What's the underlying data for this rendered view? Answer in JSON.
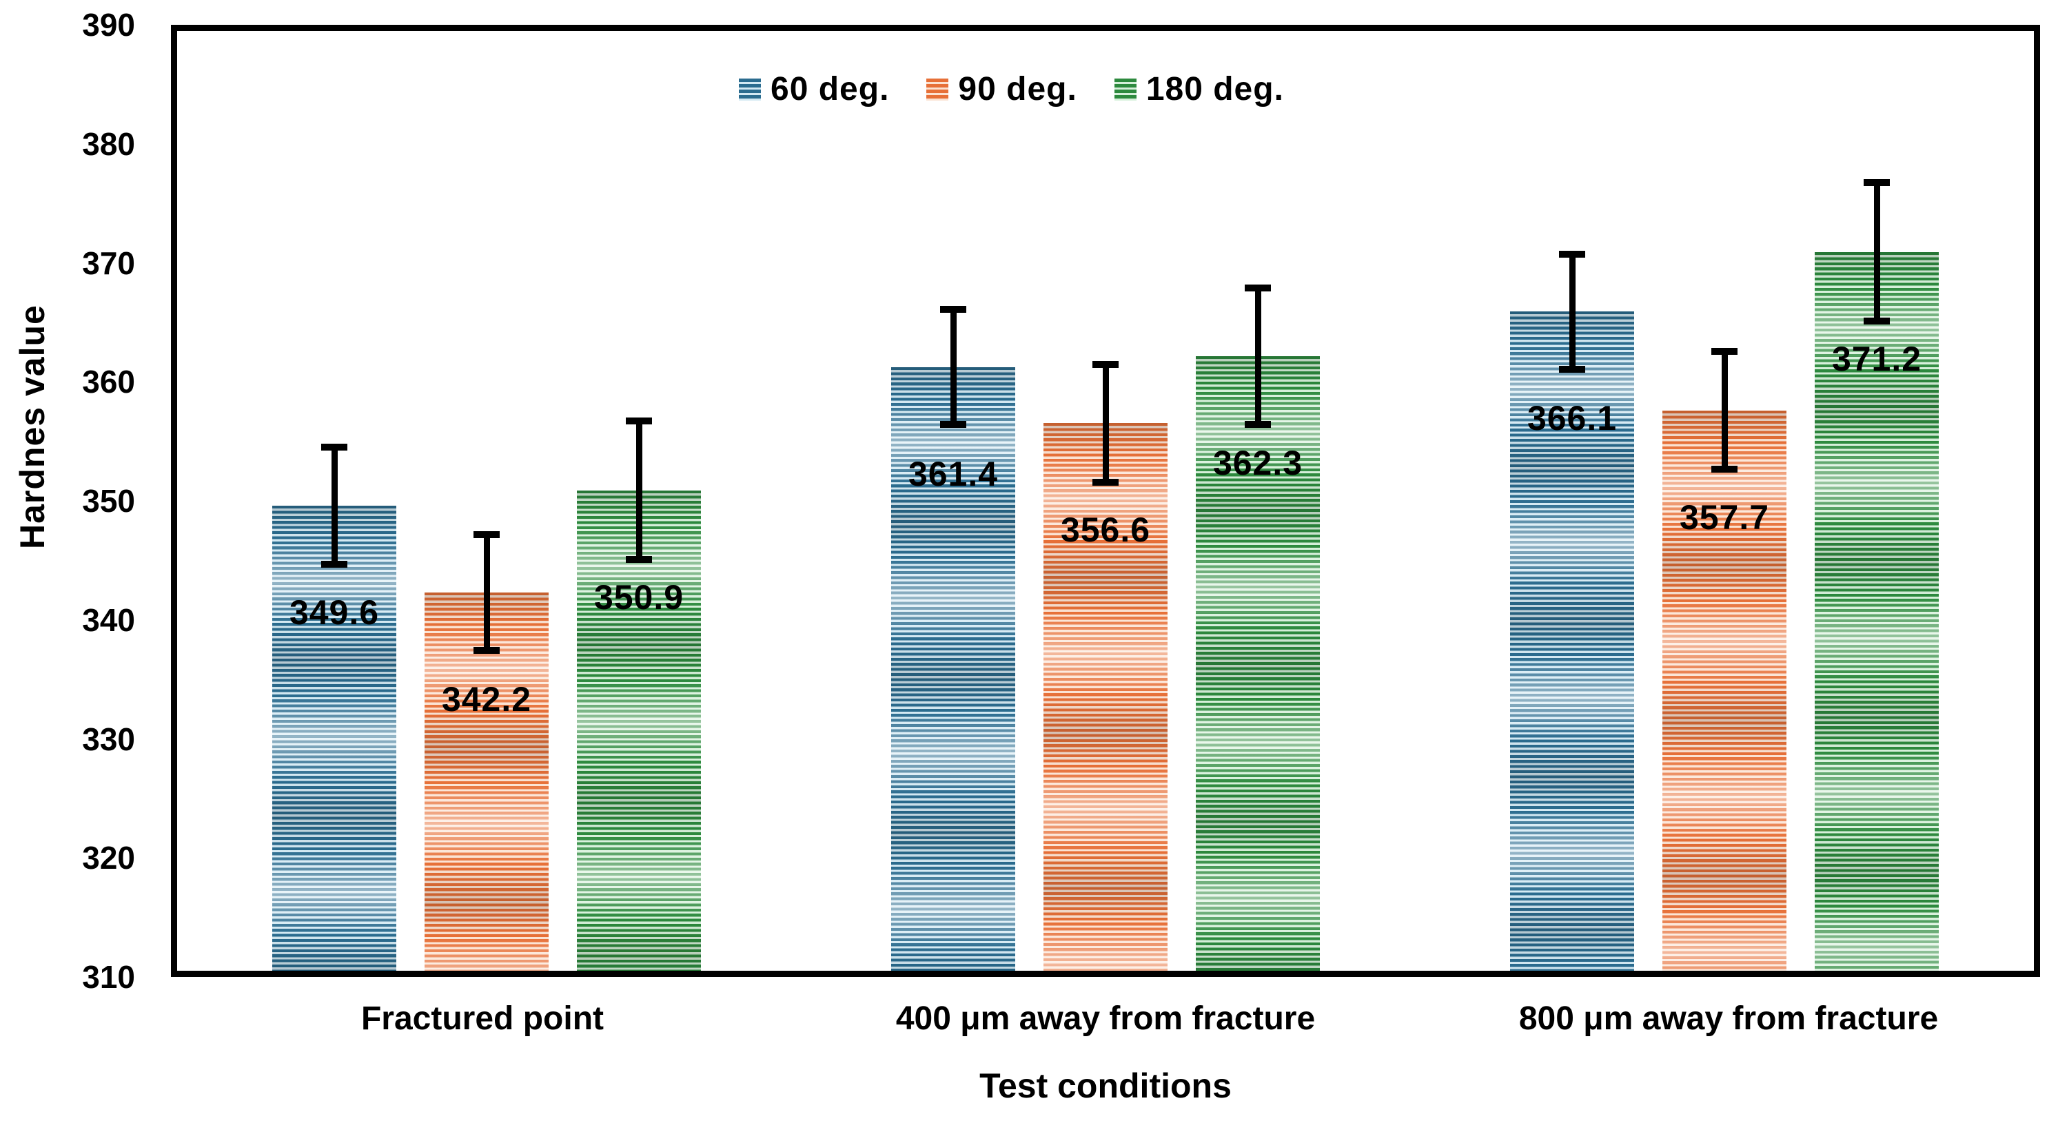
{
  "chart_data": {
    "type": "bar",
    "title": "",
    "xlabel": "Test conditions",
    "ylabel": "Hardnes value",
    "ylim": [
      310,
      390
    ],
    "yticks": [
      310,
      320,
      330,
      340,
      350,
      360,
      370,
      380,
      390
    ],
    "grid": false,
    "legend_position": "top-center",
    "error_bars": true,
    "categories": [
      "Fractured point",
      "400 μm away from fracture",
      "800 μm away from fracture"
    ],
    "series": [
      {
        "name": "60 deg.",
        "values": [
          349.6,
          361.4,
          366.1
        ],
        "errors": [
          5.0,
          4.9,
          4.9
        ],
        "color_dark": "#2b6c8f",
        "color_light": "#d3e9f3"
      },
      {
        "name": "90 deg.",
        "values": [
          342.2,
          356.6,
          357.7
        ],
        "errors": [
          4.9,
          5.0,
          5.0
        ],
        "color_dark": "#e77038",
        "color_light": "#fbe2d2"
      },
      {
        "name": "180 deg.",
        "values": [
          350.9,
          362.3,
          371.2
        ],
        "errors": [
          5.9,
          5.8,
          5.9
        ],
        "color_dark": "#2d8a3e",
        "color_light": "#d6f0da"
      }
    ],
    "bar_pattern": "horizontal-stripes",
    "text_color": "#000000",
    "frame_color": "#000000"
  }
}
